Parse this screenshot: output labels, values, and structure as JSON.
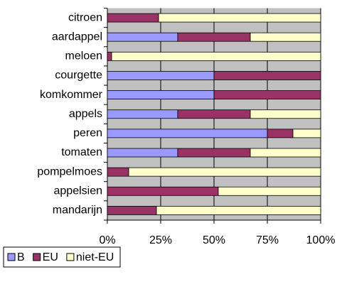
{
  "chart_data": {
    "type": "stacked_bar_horizontal",
    "categories": [
      "citroen",
      "aardappel",
      "meloen",
      "courgette",
      "komkommer",
      "appels",
      "peren",
      "tomaten",
      "pompelmoes",
      "appelsien",
      "mandarijn"
    ],
    "series": [
      {
        "name": "B",
        "color": "#9999ff",
        "values": [
          0,
          33,
          0,
          50,
          50,
          33,
          75,
          33,
          0,
          0,
          0
        ]
      },
      {
        "name": "EU",
        "color": "#993366",
        "values": [
          24,
          34,
          2,
          50,
          50,
          34,
          12,
          34,
          10,
          52,
          23
        ]
      },
      {
        "name": "niet-EU",
        "color": "#ffffcc",
        "values": [
          76,
          33,
          98,
          0,
          0,
          33,
          13,
          33,
          90,
          48,
          77
        ]
      }
    ],
    "xlim": [
      0,
      100
    ],
    "xticks": [
      {
        "value": 0,
        "label": "0%"
      },
      {
        "value": 25,
        "label": "25%"
      },
      {
        "value": 50,
        "label": "50%"
      },
      {
        "value": 75,
        "label": "75%"
      },
      {
        "value": 100,
        "label": "100%"
      }
    ],
    "grid": true,
    "legend": "bottom-left"
  }
}
